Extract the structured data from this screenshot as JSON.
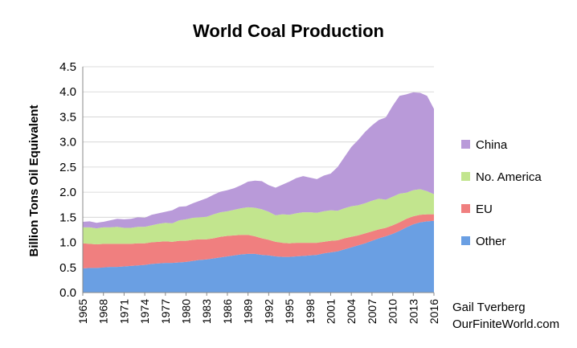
{
  "chart_data": {
    "type": "area",
    "stacked": true,
    "title": "World Coal Production",
    "xlabel": "",
    "ylabel": "Billion Tons Oil Equivalent",
    "ylim": [
      0,
      4.5
    ],
    "ytick_labels": [
      "0.0",
      "0.5",
      "1.0",
      "1.5",
      "2.0",
      "2.5",
      "3.0",
      "3.5",
      "4.0",
      "4.5"
    ],
    "xtick_labels": [
      "1965",
      "1968",
      "1971",
      "1974",
      "1977",
      "1980",
      "1983",
      "1986",
      "1989",
      "1992",
      "1995",
      "1998",
      "2001",
      "2004",
      "2007",
      "2010",
      "2013",
      "2016"
    ],
    "grid": "horizontal",
    "legend_position": "right",
    "x": [
      1965,
      1966,
      1967,
      1968,
      1969,
      1970,
      1971,
      1972,
      1973,
      1974,
      1975,
      1976,
      1977,
      1978,
      1979,
      1980,
      1981,
      1982,
      1983,
      1984,
      1985,
      1986,
      1987,
      1988,
      1989,
      1990,
      1991,
      1992,
      1993,
      1994,
      1995,
      1996,
      1997,
      1998,
      1999,
      2000,
      2001,
      2002,
      2003,
      2004,
      2005,
      2006,
      2007,
      2008,
      2009,
      2010,
      2011,
      2012,
      2013,
      2014,
      2015,
      2016
    ],
    "series": [
      {
        "name": "Other",
        "color": "#6a9fe3",
        "values": [
          0.48,
          0.49,
          0.49,
          0.5,
          0.51,
          0.51,
          0.52,
          0.53,
          0.54,
          0.55,
          0.57,
          0.58,
          0.59,
          0.59,
          0.6,
          0.61,
          0.63,
          0.65,
          0.66,
          0.68,
          0.7,
          0.72,
          0.74,
          0.76,
          0.77,
          0.77,
          0.75,
          0.74,
          0.72,
          0.71,
          0.71,
          0.72,
          0.73,
          0.74,
          0.75,
          0.78,
          0.8,
          0.82,
          0.86,
          0.9,
          0.94,
          0.98,
          1.03,
          1.08,
          1.12,
          1.17,
          1.23,
          1.3,
          1.36,
          1.4,
          1.42,
          1.43
        ]
      },
      {
        "name": "EU",
        "color": "#f07f7f",
        "values": [
          0.5,
          0.48,
          0.47,
          0.47,
          0.46,
          0.46,
          0.45,
          0.44,
          0.44,
          0.43,
          0.43,
          0.43,
          0.43,
          0.42,
          0.43,
          0.42,
          0.42,
          0.41,
          0.4,
          0.4,
          0.41,
          0.41,
          0.4,
          0.39,
          0.38,
          0.35,
          0.33,
          0.31,
          0.29,
          0.28,
          0.27,
          0.27,
          0.26,
          0.25,
          0.24,
          0.23,
          0.23,
          0.22,
          0.22,
          0.21,
          0.2,
          0.2,
          0.19,
          0.18,
          0.17,
          0.17,
          0.17,
          0.17,
          0.16,
          0.15,
          0.14,
          0.13
        ]
      },
      {
        "name": "No. America",
        "color": "#c2e58e",
        "values": [
          0.32,
          0.33,
          0.32,
          0.33,
          0.33,
          0.34,
          0.32,
          0.32,
          0.33,
          0.33,
          0.34,
          0.36,
          0.37,
          0.37,
          0.41,
          0.43,
          0.44,
          0.44,
          0.45,
          0.48,
          0.49,
          0.49,
          0.51,
          0.53,
          0.55,
          0.57,
          0.58,
          0.56,
          0.53,
          0.57,
          0.57,
          0.59,
          0.61,
          0.61,
          0.6,
          0.61,
          0.61,
          0.59,
          0.6,
          0.61,
          0.6,
          0.6,
          0.61,
          0.61,
          0.56,
          0.57,
          0.57,
          0.52,
          0.52,
          0.51,
          0.46,
          0.4
        ]
      },
      {
        "name": "China",
        "color": "#b99ad9",
        "values": [
          0.11,
          0.12,
          0.11,
          0.11,
          0.14,
          0.16,
          0.17,
          0.18,
          0.19,
          0.18,
          0.21,
          0.21,
          0.22,
          0.26,
          0.27,
          0.26,
          0.29,
          0.33,
          0.37,
          0.39,
          0.41,
          0.42,
          0.43,
          0.46,
          0.51,
          0.54,
          0.56,
          0.53,
          0.55,
          0.59,
          0.66,
          0.7,
          0.72,
          0.69,
          0.67,
          0.71,
          0.73,
          0.87,
          1.02,
          1.18,
          1.3,
          1.42,
          1.5,
          1.57,
          1.64,
          1.81,
          1.95,
          1.96,
          1.95,
          1.92,
          1.9,
          1.7
        ]
      }
    ],
    "legend_order": [
      "China",
      "No. America",
      "EU",
      "Other"
    ],
    "credit_line1": "Gail Tverberg",
    "credit_line2": "OurFiniteWorld.com"
  }
}
